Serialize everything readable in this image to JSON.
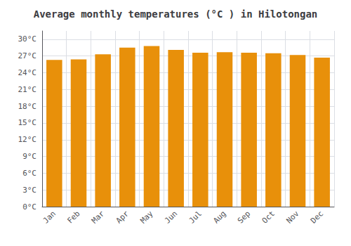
{
  "chart_data": {
    "type": "bar",
    "title": "Average monthly temperatures (°C ) in Hilotongan",
    "categories": [
      "Jan",
      "Feb",
      "Mar",
      "Apr",
      "May",
      "Jun",
      "Jul",
      "Aug",
      "Sep",
      "Oct",
      "Nov",
      "Dec"
    ],
    "values": [
      26.3,
      26.4,
      27.3,
      28.5,
      28.8,
      28.1,
      27.6,
      27.7,
      27.6,
      27.5,
      27.2,
      26.7
    ],
    "color": "#E8900A",
    "ylim": [
      0,
      31.5
    ],
    "yticks": [
      {
        "value": 0,
        "label": "0°C"
      },
      {
        "value": 3,
        "label": "3°C"
      },
      {
        "value": 6,
        "label": "6°C"
      },
      {
        "value": 9,
        "label": "9°C"
      },
      {
        "value": 12,
        "label": "12°C"
      },
      {
        "value": 15,
        "label": "15°C"
      },
      {
        "value": 18,
        "label": "18°C"
      },
      {
        "value": 21,
        "label": "21°C"
      },
      {
        "value": 24,
        "label": "24°C"
      },
      {
        "value": 27,
        "label": "27°C"
      },
      {
        "value": 30,
        "label": "30°C"
      }
    ],
    "grid": true
  }
}
